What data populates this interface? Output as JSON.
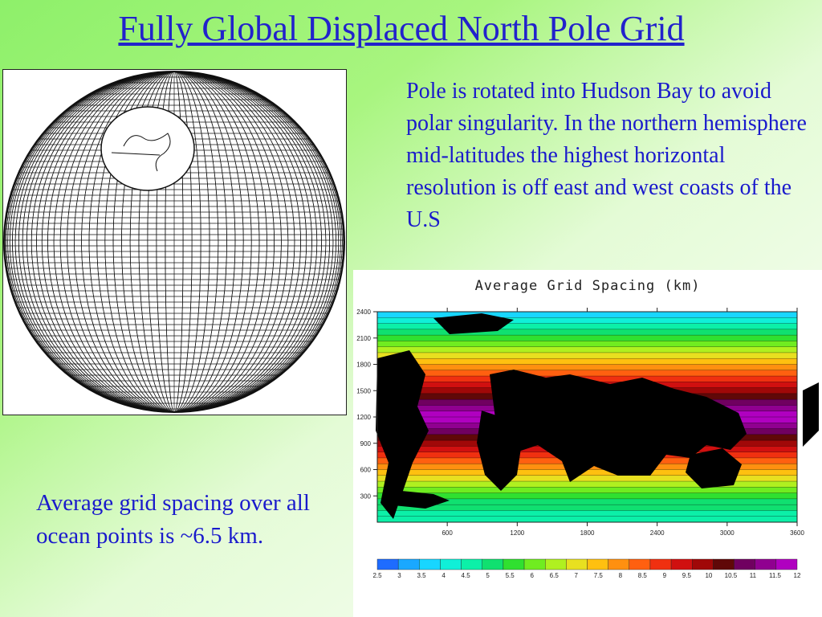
{
  "slide": {
    "title": "Fully Global Displaced North Pole Grid",
    "description": "Pole is rotated into Hudson Bay to avoid polar singularity. In the northern hemisphere mid-latitudes the highest horizontal resolution is off east and west coasts of the U.S",
    "note": "Average grid spacing over all ocean points is ~6.5 km."
  },
  "chart_data": {
    "type": "heatmap",
    "title": "Average Grid Spacing (km)",
    "x_ticks": [
      "600",
      "1200",
      "1800",
      "2400",
      "3000",
      "3600"
    ],
    "y_ticks": [
      "300",
      "600",
      "900",
      "1200",
      "1500",
      "1800",
      "2100",
      "2400"
    ],
    "colorbar_labels": [
      "2.5",
      "3",
      "3.5",
      "4",
      "4.5",
      "5",
      "5.5",
      "6",
      "6.5",
      "7",
      "7.5",
      "8",
      "8.5",
      "9",
      "9.5",
      "10",
      "10.5",
      "11",
      "11.5",
      "12"
    ],
    "colorbar_colors": [
      "#1e6cff",
      "#1aa8ff",
      "#18d6ff",
      "#10f0d8",
      "#0cf0a8",
      "#10e070",
      "#30e030",
      "#70ec20",
      "#b0f020",
      "#e8e020",
      "#ffc010",
      "#ff9010",
      "#ff6010",
      "#f03010",
      "#d01010",
      "#a00808",
      "#600808",
      "#700060",
      "#900090",
      "#b000c0"
    ]
  }
}
